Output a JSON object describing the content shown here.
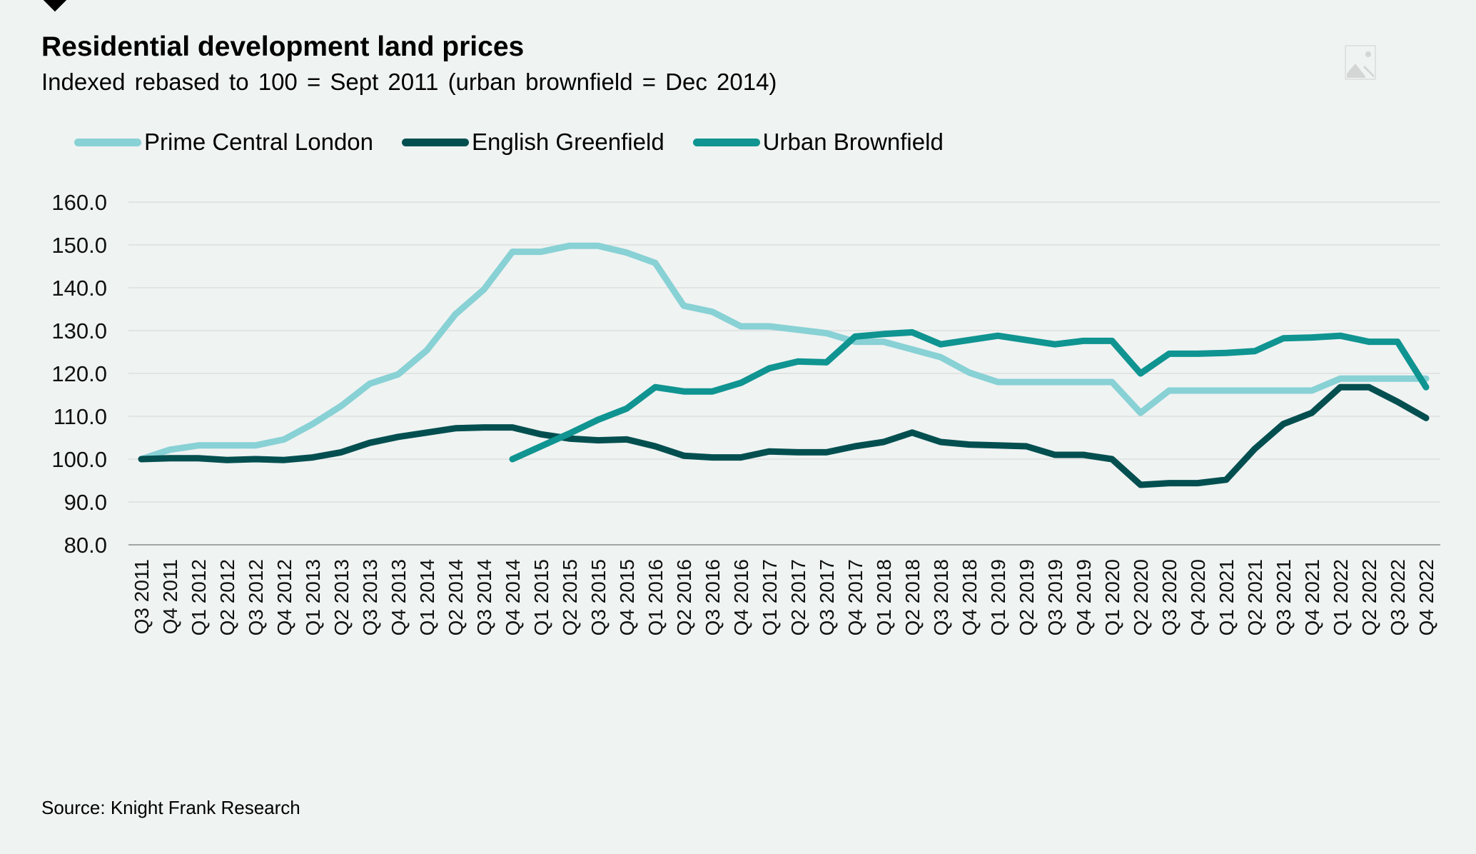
{
  "chart_data": {
    "type": "line",
    "title": "Residential development land prices",
    "subtitle": "Indexed rebased to 100 = Sept 2011 (urban brownfield = Dec 2014)",
    "xlabel": "",
    "ylabel": "",
    "ylim": [
      80,
      160
    ],
    "yticks": [
      "80.0",
      "90.0",
      "100.0",
      "110.0",
      "120.0",
      "130.0",
      "140.0",
      "150.0",
      "160.0"
    ],
    "grid": true,
    "legend_position": "top-left",
    "categories": [
      "Q3 2011",
      "Q4 2011",
      "Q1 2012",
      "Q2 2012",
      "Q3 2012",
      "Q4 2012",
      "Q1 2013",
      "Q2 2013",
      "Q3 2013",
      "Q4 2013",
      "Q1 2014",
      "Q2 2014",
      "Q3 2014",
      "Q4 2014",
      "Q1 2015",
      "Q2 2015",
      "Q3 2015",
      "Q4 2015",
      "Q1 2016",
      "Q2 2016",
      "Q3 2016",
      "Q4 2016",
      "Q1 2017",
      "Q2 2017",
      "Q3 2017",
      "Q4 2017",
      "Q1 2018",
      "Q2 2018",
      "Q3 2018",
      "Q4 2018",
      "Q1 2019",
      "Q2 2019",
      "Q3 2019",
      "Q4 2019",
      "Q1 2020",
      "Q2 2020",
      "Q3 2020",
      "Q4 2020",
      "Q1 2021",
      "Q2 2021",
      "Q3 2021",
      "Q4 2021",
      "Q1 2022",
      "Q2 2022",
      "Q3 2022",
      "Q4 2022"
    ],
    "series": [
      {
        "name": "Prime Central London",
        "color": "#88d1d5",
        "values": [
          100.0,
          102.2,
          103.2,
          103.2,
          103.2,
          104.6,
          108.2,
          112.4,
          117.6,
          119.8,
          125.4,
          133.8,
          139.6,
          148.4,
          148.4,
          149.8,
          149.8,
          148.2,
          145.8,
          135.8,
          134.4,
          131.0,
          131.0,
          130.2,
          129.4,
          127.4,
          127.4,
          125.6,
          123.8,
          120.2,
          118.0,
          118.0,
          118.0,
          118.0,
          118.0,
          110.8,
          116.0,
          116.0,
          116.0,
          116.0,
          116.0,
          116.0,
          118.8,
          118.8,
          118.8,
          118.8
        ]
      },
      {
        "name": "English Greenfield",
        "color": "#034f50",
        "values": [
          100.0,
          100.2,
          100.2,
          99.8,
          100.0,
          99.8,
          100.4,
          101.6,
          103.8,
          105.2,
          106.2,
          107.2,
          107.4,
          107.4,
          105.8,
          104.8,
          104.4,
          104.6,
          103.0,
          100.8,
          100.4,
          100.4,
          101.8,
          101.6,
          101.6,
          103.0,
          104.0,
          106.2,
          104.0,
          103.4,
          103.2,
          103.0,
          101.0,
          101.0,
          100.0,
          94.0,
          94.4,
          94.4,
          95.2,
          102.4,
          108.2,
          110.8,
          116.8,
          116.8,
          113.4,
          109.6
        ]
      },
      {
        "name": "Urban Brownfield",
        "color": "#0f9491",
        "values": [
          null,
          null,
          null,
          null,
          null,
          null,
          null,
          null,
          null,
          null,
          null,
          null,
          null,
          100.0,
          103.0,
          106.0,
          109.2,
          111.8,
          116.8,
          115.8,
          115.8,
          117.8,
          121.2,
          122.8,
          122.6,
          128.6,
          129.2,
          129.6,
          126.8,
          127.8,
          128.8,
          127.8,
          126.8,
          127.6,
          127.6,
          120.0,
          124.6,
          124.6,
          124.8,
          125.2,
          128.2,
          128.4,
          128.8,
          127.4,
          127.4,
          116.8
        ]
      }
    ]
  },
  "header": {
    "title": "Residential development land prices",
    "subtitle": "Indexed rebased to 100 = Sept 2011 (urban brownfield = Dec 2014)"
  },
  "legend": [
    {
      "label": "Prime Central London",
      "color": "#88d1d5"
    },
    {
      "label": "English Greenfield",
      "color": "#034f50"
    },
    {
      "label": "Urban Brownfield",
      "color": "#0f9491"
    }
  ],
  "footer": {
    "source": "Source: Knight Frank Research"
  },
  "icons": {
    "top_right": "image-placeholder-icon",
    "top_left": "diamond-marker-icon"
  }
}
